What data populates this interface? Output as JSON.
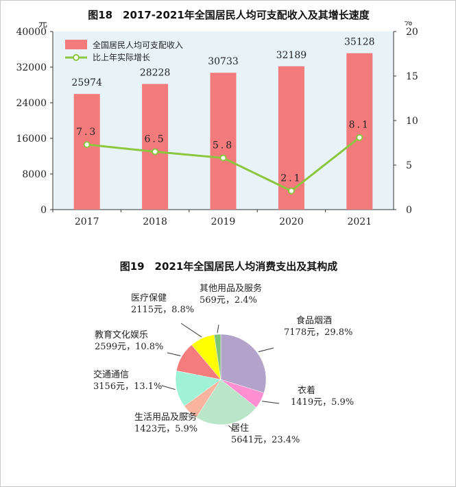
{
  "figures": {
    "fig18_title": "图18　2017-2021年全国居民人均可支配收入及其增长速度",
    "fig19_title": "图19　2021年全国居民人均消费支出及其构成"
  },
  "chart_data": [
    {
      "type": "bar",
      "title": "图18　2017-2021年全国居民人均可支配收入及其增长速度",
      "categories": [
        "2017",
        "2018",
        "2019",
        "2020",
        "2021"
      ],
      "series": [
        {
          "name": "全国居民人均可支配收入",
          "kind": "bar",
          "axis": "left",
          "values": [
            25974,
            28228,
            30733,
            32189,
            35128
          ],
          "color": "#f47b7b"
        },
        {
          "name": "比上年实际增长",
          "kind": "line",
          "axis": "right",
          "values": [
            7.3,
            6.5,
            5.8,
            2.1,
            8.1
          ],
          "color": "#8cc63f"
        }
      ],
      "bar_labels": [
        "25974",
        "28228",
        "30733",
        "32189",
        "35128"
      ],
      "line_labels": [
        "7.3",
        "6.5",
        "5.8",
        "2.1",
        "8.1"
      ],
      "ylabel_left": "元",
      "ylabel_right": "%",
      "ylim_left": [
        0,
        40000
      ],
      "yticks_left": [
        "0",
        "8000",
        "16000",
        "24000",
        "32000",
        "40000"
      ],
      "ylim_right": [
        0,
        20
      ],
      "yticks_right": [
        "0",
        "5",
        "10",
        "15",
        "20"
      ],
      "legend_position": "top-left",
      "plot_background": "#e8f3f8"
    },
    {
      "type": "pie",
      "title": "图19　2021年全国居民人均消费支出及其构成",
      "slices": [
        {
          "name": "食品烟酒",
          "value": 7178,
          "percent": 29.8,
          "label": "7178元，29.8%",
          "color": "#b3a3cb"
        },
        {
          "name": "衣着",
          "value": 1419,
          "percent": 5.9,
          "label": "1419元，5.9%",
          "color": "#ff8fd0"
        },
        {
          "name": "居住",
          "value": 5641,
          "percent": 23.4,
          "label": "5641元，23.4%",
          "color": "#b9e6c9"
        },
        {
          "name": "生活用品及服务",
          "value": 1423,
          "percent": 5.9,
          "label": "1423元，5.9%",
          "color": "#f8b49e"
        },
        {
          "name": "交通通信",
          "value": 3156,
          "percent": 13.1,
          "label": "3156元，13.1%",
          "color": "#9ff2d6"
        },
        {
          "name": "教育文化娱乐",
          "value": 2599,
          "percent": 10.8,
          "label": "2599元，10.8%",
          "color": "#f47c7c"
        },
        {
          "name": "医疗保健",
          "value": 2115,
          "percent": 8.8,
          "label": "2115元，8.8%",
          "color": "#ffff00"
        },
        {
          "name": "其他用品及服务",
          "value": 569,
          "percent": 2.4,
          "label": "569元，2.4%",
          "color": "#7cc576"
        }
      ]
    }
  ]
}
